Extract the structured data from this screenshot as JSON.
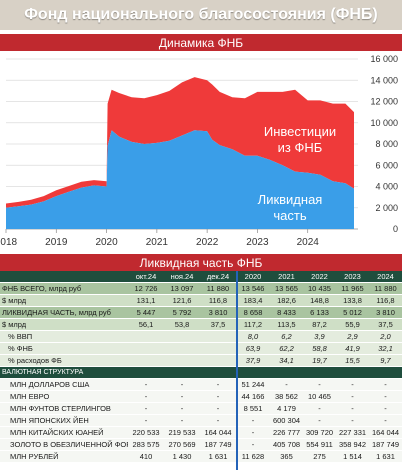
{
  "header": {
    "main_title": "Фонд национального благосостояния (ФНБ)",
    "chart_title": "Динамика ФНБ",
    "table_title": "Ликвидная часть ФНБ"
  },
  "chart_data": {
    "type": "area",
    "title": "Динамика ФНБ",
    "x_labels": [
      "2018",
      "2019",
      "2020",
      "2021",
      "2022",
      "2023",
      "2024"
    ],
    "y_ticks": [
      "0",
      "2 000",
      "4 000",
      "6 000",
      "8 000",
      "10 000",
      "12 000",
      "14 000",
      "16 000"
    ],
    "ylim": [
      0,
      16000
    ],
    "xlim": [
      2018,
      2025
    ],
    "grid": true,
    "series": [
      {
        "name": "Ликвидная часть",
        "color": "#3a9ee8",
        "x": [
          2018.0,
          2018.25,
          2018.5,
          2018.75,
          2019.0,
          2019.25,
          2019.5,
          2019.75,
          2020.0,
          2020.02,
          2020.1,
          2020.25,
          2020.5,
          2020.75,
          2021.0,
          2021.25,
          2021.5,
          2021.75,
          2022.0,
          2022.1,
          2022.25,
          2022.5,
          2022.75,
          2023.0,
          2023.25,
          2023.5,
          2023.75,
          2024.0,
          2024.25,
          2024.5,
          2024.75,
          2024.92
        ],
        "values": [
          2000,
          2150,
          2300,
          2600,
          3100,
          3500,
          3900,
          4100,
          4000,
          7800,
          9300,
          8700,
          8200,
          8000,
          8100,
          8300,
          8800,
          9300,
          9200,
          8400,
          7900,
          7500,
          6900,
          6900,
          6500,
          6000,
          5400,
          5300,
          5100,
          4500,
          4300,
          3800
        ]
      },
      {
        "name": "Инвестиции из ФНБ",
        "color": "#ef3a3a",
        "x": [
          2018.0,
          2018.25,
          2018.5,
          2018.75,
          2019.0,
          2019.25,
          2019.5,
          2019.75,
          2020.0,
          2020.02,
          2020.1,
          2020.25,
          2020.5,
          2020.75,
          2021.0,
          2021.25,
          2021.5,
          2021.75,
          2022.0,
          2022.1,
          2022.25,
          2022.5,
          2022.75,
          2023.0,
          2023.25,
          2023.5,
          2023.75,
          2024.0,
          2024.25,
          2024.5,
          2024.75,
          2024.92
        ],
        "values": [
          400,
          400,
          450,
          500,
          550,
          550,
          550,
          500,
          500,
          4000,
          3800,
          4100,
          4200,
          4300,
          4500,
          4700,
          5000,
          5000,
          4800,
          5200,
          5000,
          4900,
          5400,
          6000,
          6400,
          6900,
          7700,
          6800,
          7000,
          7300,
          7500,
          7200
        ]
      }
    ],
    "annotations": [
      "Инвестиции из ФНБ",
      "Ликвидная часть"
    ]
  },
  "chart_labels": {
    "invest_line1": "Инвестиции",
    "invest_line2": "из ФНБ",
    "liquid_line1": "Ликвидная",
    "liquid_line2": "часть"
  },
  "table": {
    "columns": [
      "",
      "окт.24",
      "ноя.24",
      "дек.24",
      "2020",
      "2021",
      "2022",
      "2023",
      "2024"
    ],
    "rows": [
      {
        "label": "ФНБ ВСЕГО, млрд руб",
        "values": [
          "12 726",
          "13 097",
          "11 880",
          "13 546",
          "13 565",
          "10 435",
          "11 965",
          "11 880"
        ],
        "style": "band-dark"
      },
      {
        "label": "$ млрд",
        "values": [
          "131,1",
          "121,6",
          "116,8",
          "183,4",
          "182,6",
          "148,8",
          "133,8",
          "116,8"
        ],
        "style": "band-mid"
      },
      {
        "label": "ЛИКВИДНАЯ ЧАСТЬ, млрд руб",
        "values": [
          "5 447",
          "5 792",
          "3 810",
          "8 658",
          "8 433",
          "6 133",
          "5 012",
          "3 810"
        ],
        "style": "band-dark"
      },
      {
        "label": "$ млрд",
        "values": [
          "56,1",
          "53,8",
          "37,5",
          "117,2",
          "113,5",
          "87,2",
          "55,9",
          "37,5"
        ],
        "style": "band-mid"
      },
      {
        "label": "% ВВП",
        "values": [
          "",
          "",
          "",
          "8,0",
          "6,2",
          "3,9",
          "2,9",
          "2,0"
        ],
        "style": "band-light indent italic"
      },
      {
        "label": "% ФНБ",
        "values": [
          "",
          "",
          "",
          "63,9",
          "62,2",
          "58,8",
          "41,9",
          "32,1"
        ],
        "style": "band-light indent italic"
      },
      {
        "label": "% расходов ФБ",
        "values": [
          "",
          "",
          "",
          "37,9",
          "34,1",
          "19,7",
          "15,5",
          "9,7"
        ],
        "style": "band-light indent italic"
      },
      {
        "label": "ВАЛЮТНАЯ СТРУКТУРА",
        "values": [
          "",
          "",
          "",
          "",
          "",
          "",
          "",
          ""
        ],
        "style": "section"
      },
      {
        "label": "МЛН ДОЛЛАРОВ США",
        "values": [
          "-",
          "-",
          "-",
          "51 244",
          "-",
          "-",
          "-",
          "-"
        ],
        "style": "band-white indent2"
      },
      {
        "label": "МЛН ЕВРО",
        "values": [
          "-",
          "-",
          "-",
          "44 166",
          "38 562",
          "10 465",
          "-",
          "-"
        ],
        "style": "band-white indent2"
      },
      {
        "label": "МЛН ФУНТОВ СТЕРЛИНГОВ",
        "values": [
          "-",
          "-",
          "-",
          "8 551",
          "4 179",
          "-",
          "-",
          "-"
        ],
        "style": "band-white indent2"
      },
      {
        "label": "МЛН ЯПОНСКИХ ЙЕН",
        "values": [
          "-",
          "-",
          "-",
          "-",
          "600 304",
          "-",
          "-",
          "-"
        ],
        "style": "band-white indent2"
      },
      {
        "label": "МЛН КИТАЙСКИХ ЮАНЕЙ",
        "values": [
          "220 533",
          "219 533",
          "164 044",
          "-",
          "226 777",
          "309 720",
          "227 331",
          "164 044"
        ],
        "style": "band-white indent2"
      },
      {
        "label": "ЗОЛОТО В ОБЕЗЛИЧЕННОЙ ФОРМЕ, КГ",
        "values": [
          "283 575",
          "270 569",
          "187 749",
          "-",
          "405 708",
          "554 911",
          "358 942",
          "187 749"
        ],
        "style": "band-white indent2"
      },
      {
        "label": "МЛН РУБЛЕЙ",
        "values": [
          "410",
          "1 430",
          "1 631",
          "11 628",
          "365",
          "275",
          "1 514",
          "1 631"
        ],
        "style": "band-white indent2"
      }
    ]
  }
}
